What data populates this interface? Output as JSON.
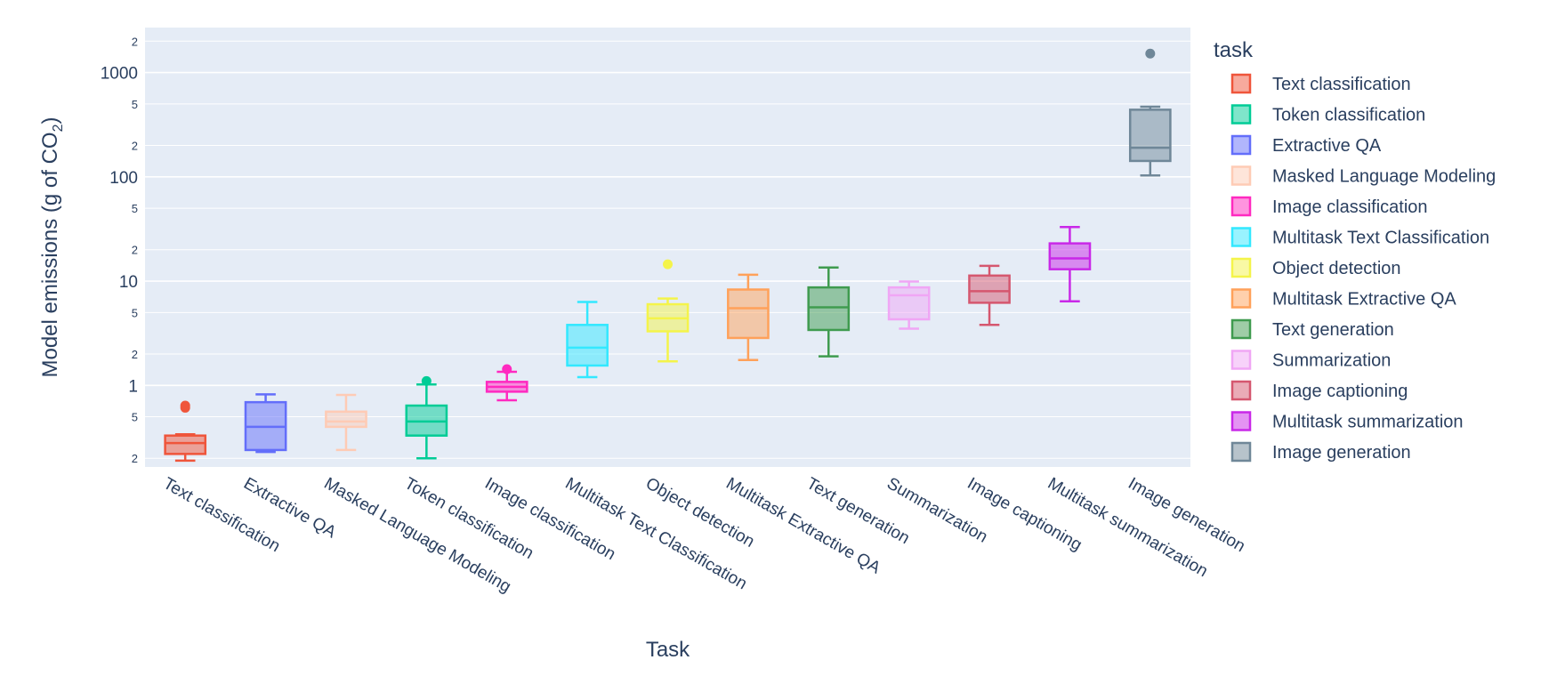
{
  "chart_data": {
    "type": "box",
    "xlabel": "Task",
    "ylabel_prefix": "Model emissions (g of CO",
    "ylabel_sub": "2",
    "ylabel_suffix": ")",
    "y_scale": "log",
    "ylim": [
      0.165,
      2700
    ],
    "grid": true,
    "legend_title": "task",
    "legend_position": "right",
    "y_major_ticks": [
      {
        "value": 1,
        "label": "1"
      },
      {
        "value": 10,
        "label": "10"
      },
      {
        "value": 100,
        "label": "100"
      },
      {
        "value": 1000,
        "label": "1000"
      }
    ],
    "y_minor_ticks": [
      {
        "value": 0.2,
        "label": "2"
      },
      {
        "value": 0.5,
        "label": "5"
      },
      {
        "value": 2,
        "label": "2"
      },
      {
        "value": 5,
        "label": "5"
      },
      {
        "value": 20,
        "label": "2"
      },
      {
        "value": 50,
        "label": "5"
      },
      {
        "value": 200,
        "label": "2"
      },
      {
        "value": 500,
        "label": "5"
      },
      {
        "value": 2000,
        "label": "2"
      }
    ],
    "categories": [
      "Text classification",
      "Extractive QA",
      "Masked Language Modeling",
      "Token classification",
      "Image classification",
      "Multitask Text Classification",
      "Object detection",
      "Multitask Extractive QA",
      "Text generation",
      "Summarization",
      "Image captioning",
      "Multitask summarization",
      "Image generation"
    ],
    "series": [
      {
        "name": "Text classification",
        "category": "Text classification",
        "color": "#EF553B",
        "min": 0.19,
        "q1": 0.22,
        "median": 0.28,
        "q3": 0.33,
        "max": 0.34,
        "outliers": [
          0.61,
          0.64
        ]
      },
      {
        "name": "Token classification",
        "category": "Token classification",
        "color": "#00CC96",
        "min": 0.2,
        "q1": 0.33,
        "median": 0.45,
        "q3": 0.64,
        "max": 1.02,
        "outliers": [
          1.1
        ]
      },
      {
        "name": "Extractive QA",
        "category": "Extractive QA",
        "color": "#636EFA",
        "min": 0.23,
        "q1": 0.24,
        "median": 0.4,
        "q3": 0.69,
        "max": 0.82,
        "outliers": []
      },
      {
        "name": "Masked Language Modeling",
        "category": "Masked Language Modeling",
        "color": "#FECBB5",
        "min": 0.24,
        "q1": 0.4,
        "median": 0.45,
        "q3": 0.56,
        "max": 0.81,
        "outliers": []
      },
      {
        "name": "Image classification",
        "category": "Image classification",
        "color": "#FF2AC0",
        "min": 0.72,
        "q1": 0.87,
        "median": 0.97,
        "q3": 1.08,
        "max": 1.35,
        "outliers": [
          1.43
        ]
      },
      {
        "name": "Multitask Text Classification",
        "category": "Multitask Text Classification",
        "color": "#33E8FF",
        "min": 1.2,
        "q1": 1.55,
        "median": 2.3,
        "q3": 3.8,
        "max": 6.3,
        "outliers": []
      },
      {
        "name": "Object detection",
        "category": "Object detection",
        "color": "#F4F44A",
        "min": 1.7,
        "q1": 3.3,
        "median": 4.4,
        "q3": 6.0,
        "max": 6.8,
        "outliers": [
          14.5
        ]
      },
      {
        "name": "Multitask Extractive QA",
        "category": "Multitask Extractive QA",
        "color": "#FFA15A",
        "min": 1.75,
        "q1": 2.85,
        "median": 5.5,
        "q3": 8.3,
        "max": 11.5,
        "outliers": []
      },
      {
        "name": "Text generation",
        "category": "Text generation",
        "color": "#3F9B4F",
        "min": 1.9,
        "q1": 3.4,
        "median": 5.6,
        "q3": 8.7,
        "max": 13.5,
        "outliers": []
      },
      {
        "name": "Summarization",
        "category": "Summarization",
        "color": "#F0A6F5",
        "min": 3.5,
        "q1": 4.3,
        "median": 7.3,
        "q3": 8.7,
        "max": 9.9,
        "outliers": []
      },
      {
        "name": "Image captioning",
        "category": "Image captioning",
        "color": "#D5576F",
        "min": 3.8,
        "q1": 6.2,
        "median": 8.0,
        "q3": 11.3,
        "max": 14.0,
        "outliers": []
      },
      {
        "name": "Multitask summarization",
        "category": "Multitask summarization",
        "color": "#C928E8",
        "min": 6.4,
        "q1": 13.0,
        "median": 16.5,
        "q3": 23.0,
        "max": 33.0,
        "outliers": []
      },
      {
        "name": "Image generation",
        "category": "Image generation",
        "color": "#6F8798",
        "min": 103,
        "q1": 142,
        "median": 190,
        "q3": 440,
        "max": 470,
        "outliers": [
          1520
        ]
      }
    ]
  }
}
